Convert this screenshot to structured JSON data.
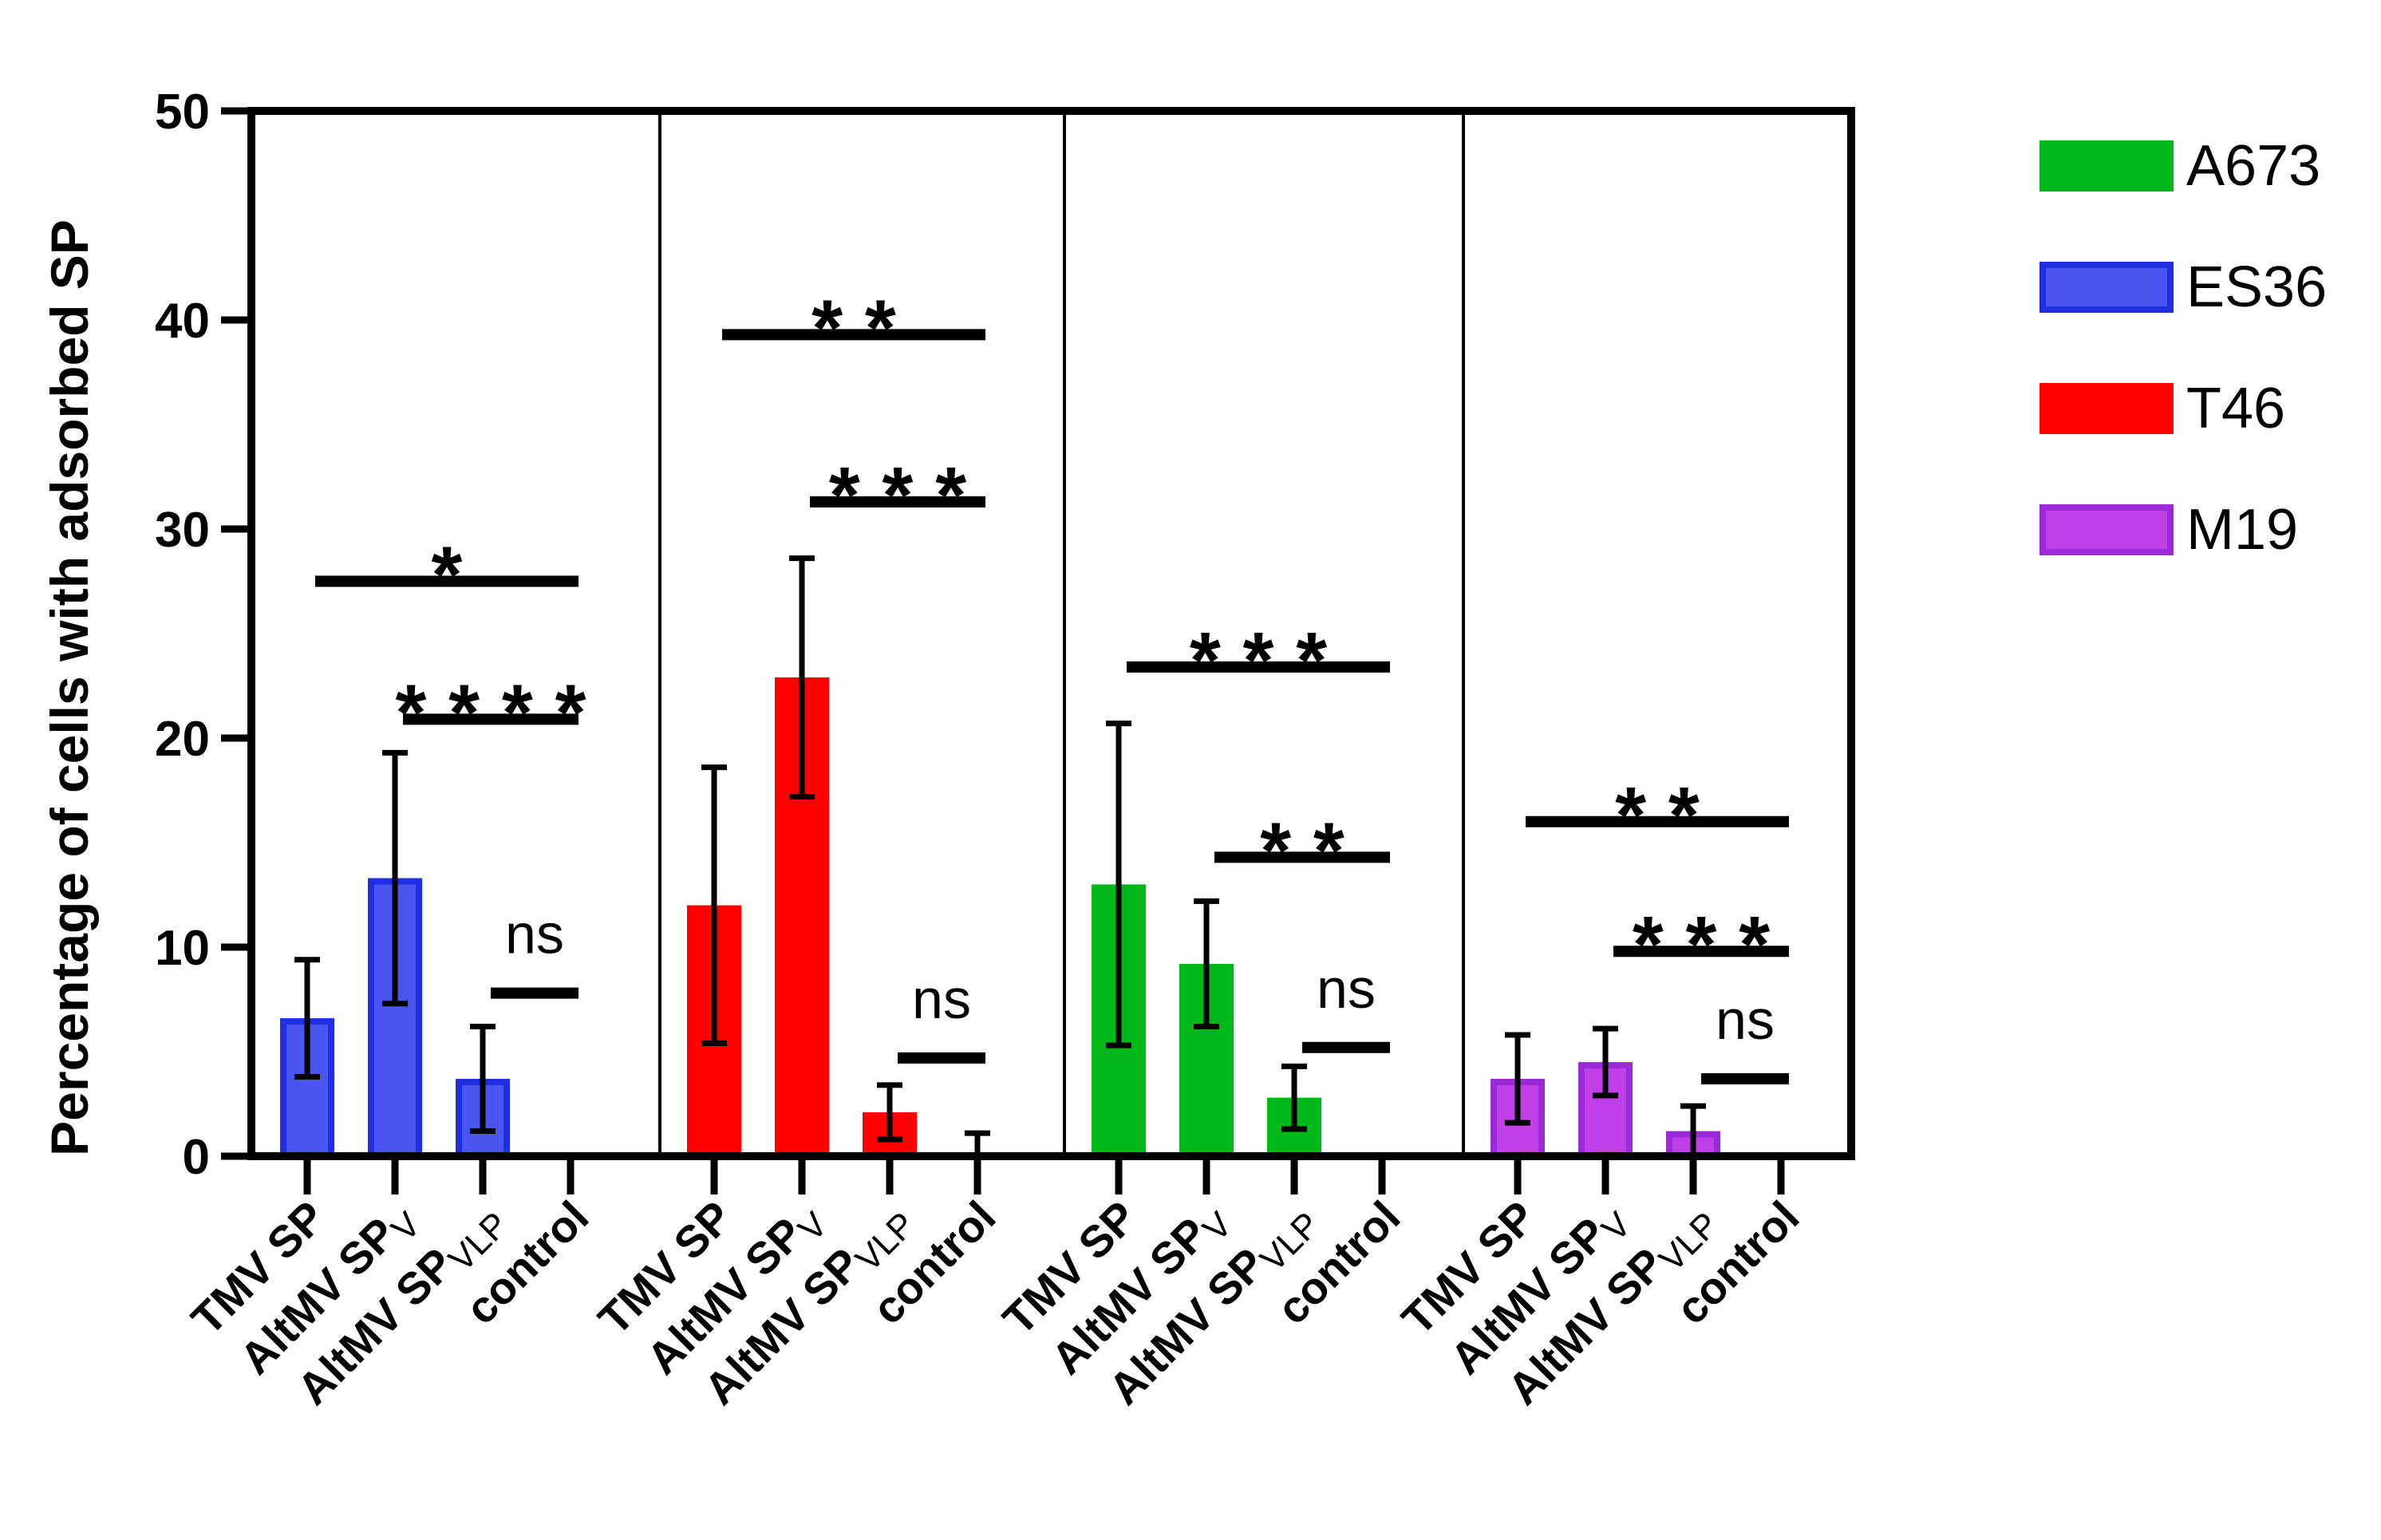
{
  "chart_data": {
    "type": "bar",
    "title": "",
    "xlabel": "",
    "ylabel": "Percentage of cells with adsorbed SP",
    "ylim": [
      0,
      50
    ],
    "yticks": [
      0,
      10,
      20,
      30,
      40,
      50
    ],
    "grid": false,
    "legend_position": "right",
    "categories": [
      {
        "main": "TMV SP",
        "sub": ""
      },
      {
        "main": "AltMV SP",
        "sub": "V"
      },
      {
        "main": "AltMV SP",
        "sub": "VLP"
      },
      {
        "main": "control",
        "sub": ""
      }
    ],
    "series": [
      {
        "name": "ES36",
        "fill": "#4a55f0",
        "edge": "#1f2fe0",
        "values": [
          6.6,
          13.3,
          3.7,
          0
        ],
        "errors": [
          2.8,
          6.0,
          2.5,
          0
        ],
        "annotations": [
          {
            "from": 0,
            "to": 3,
            "level": 27.5,
            "label": "*"
          },
          {
            "from": 1,
            "to": 3,
            "level": 20.9,
            "label": "* * * *"
          },
          {
            "from": 2,
            "to": 3,
            "level": 7.8,
            "label": "ns"
          }
        ]
      },
      {
        "name": "T46",
        "fill": "#ff0000",
        "edge": "#ff0000",
        "values": [
          12.0,
          22.9,
          2.1,
          0
        ],
        "errors": [
          6.6,
          5.7,
          1.3,
          1.1
        ],
        "annotations": [
          {
            "from": 0,
            "to": 3,
            "level": 39.3,
            "label": "* *"
          },
          {
            "from": 1,
            "to": 3,
            "level": 31.3,
            "label": "* * *"
          },
          {
            "from": 2,
            "to": 3,
            "level": 4.7,
            "label": "ns"
          }
        ]
      },
      {
        "name": "A673",
        "fill": "#00b81a",
        "edge": "#00b81a",
        "values": [
          13.0,
          9.2,
          2.8,
          0
        ],
        "errors": [
          7.7,
          3.0,
          1.5,
          0
        ],
        "annotations": [
          {
            "from": 0,
            "to": 3,
            "level": 23.4,
            "label": "* * *"
          },
          {
            "from": 1,
            "to": 3,
            "level": 14.3,
            "label": "* *"
          },
          {
            "from": 2,
            "to": 3,
            "level": 5.2,
            "label": "ns"
          }
        ]
      },
      {
        "name": "M19",
        "fill": "#c040e8",
        "edge": "#9a2ad8",
        "values": [
          3.7,
          4.5,
          1.2,
          0
        ],
        "errors": [
          2.1,
          1.6,
          1.2,
          0
        ],
        "annotations": [
          {
            "from": 0,
            "to": 3,
            "level": 16.0,
            "label": "* *"
          },
          {
            "from": 1,
            "to": 3,
            "level": 9.8,
            "label": "* * *"
          },
          {
            "from": 2,
            "to": 3,
            "level": 3.7,
            "label": "ns"
          }
        ]
      }
    ],
    "legend": [
      {
        "name": "A673",
        "fill": "#00b81a",
        "edge": "#00b81a"
      },
      {
        "name": "ES36",
        "fill": "#4a55f0",
        "edge": "#1f2fe0"
      },
      {
        "name": "T46",
        "fill": "#ff0000",
        "edge": "#ff0000"
      },
      {
        "name": "M19",
        "fill": "#c040e8",
        "edge": "#9a2ad8"
      }
    ]
  }
}
